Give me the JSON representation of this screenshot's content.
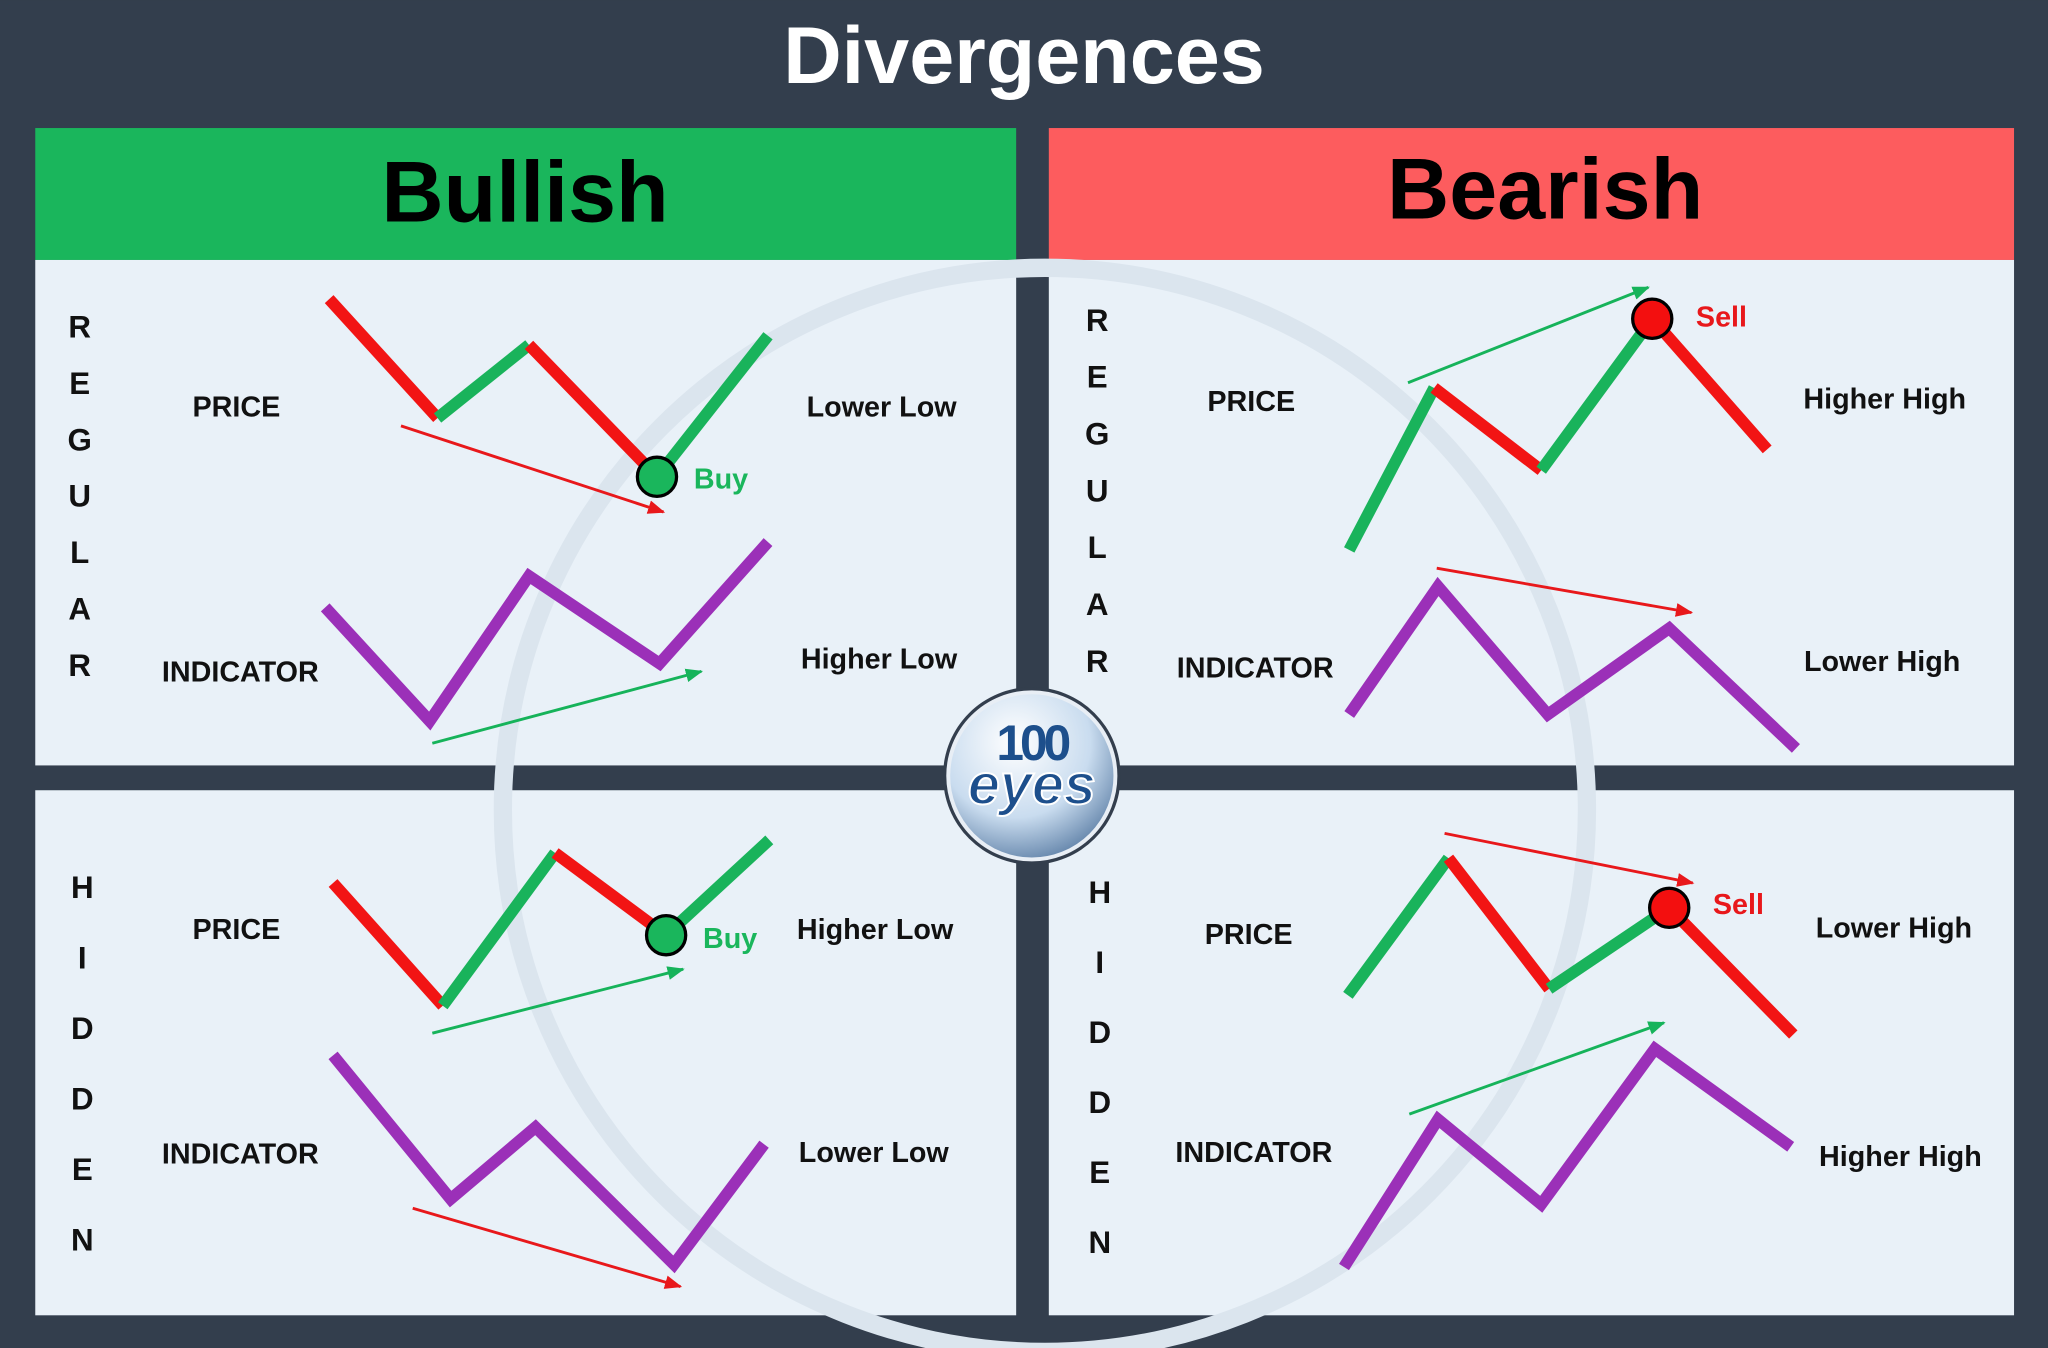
{
  "title": "Divergences",
  "columns": [
    {
      "header": "Bullish"
    },
    {
      "header": "Bearish"
    }
  ],
  "logo": {
    "number": "100",
    "word": "eyes"
  },
  "panels": [
    {
      "letters": [
        "R",
        "E",
        "G",
        "U",
        "L",
        "A",
        "R"
      ],
      "price_label": "PRICE",
      "indicator_label": "INDICATOR",
      "price_note": "Lower Low",
      "indicator_note": "Higher Low",
      "signal": "Buy"
    },
    {
      "letters": [
        "R",
        "E",
        "G",
        "U",
        "L",
        "A",
        "R"
      ],
      "price_label": "PRICE",
      "indicator_label": "INDICATOR",
      "price_note": "Higher High",
      "indicator_note": "Lower High",
      "signal": "Sell"
    },
    {
      "letters": [
        "H",
        "I",
        "D",
        "D",
        "E",
        "N"
      ],
      "price_label": "PRICE",
      "indicator_label": "INDICATOR",
      "price_note": "Higher Low",
      "indicator_note": "Lower Low",
      "signal": "Buy"
    },
    {
      "letters": [
        "H",
        "I",
        "D",
        "D",
        "E",
        "N"
      ],
      "price_label": "PRICE",
      "indicator_label": "INDICATOR",
      "price_note": "Lower High",
      "indicator_note": "Higher High",
      "signal": "Sell"
    }
  ]
}
